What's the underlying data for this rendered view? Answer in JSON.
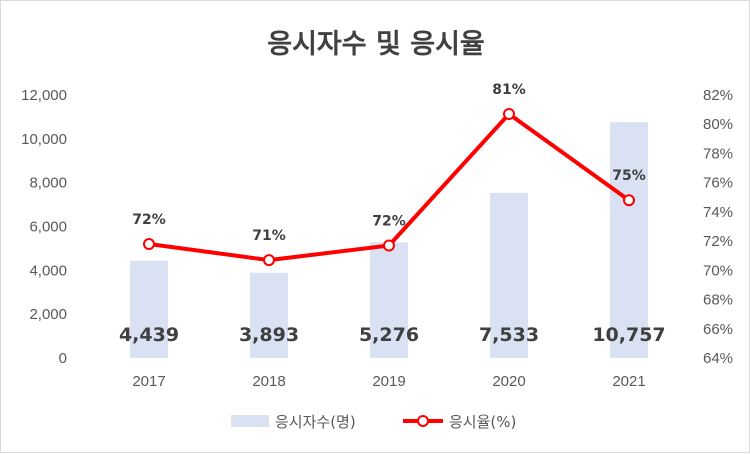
{
  "chart_data": {
    "type": "bar",
    "title": "응시자수 및 응시율",
    "categories": [
      "2017",
      "2018",
      "2019",
      "2020",
      "2021"
    ],
    "series": [
      {
        "name": "응시자수(명)",
        "type": "bar",
        "axis": "left",
        "values": [
          4439,
          3893,
          5276,
          7533,
          10757
        ],
        "labels": [
          "4,439",
          "3,893",
          "5,276",
          "7,533",
          "10,757"
        ],
        "color": "#d9e1f2"
      },
      {
        "name": "응시율(%)",
        "type": "line",
        "axis": "right",
        "values": [
          71.8,
          70.7,
          71.7,
          80.7,
          74.8
        ],
        "labels": [
          "72%",
          "71%",
          "72%",
          "81%",
          "75%"
        ],
        "color": "#ff0000"
      }
    ],
    "y_left": {
      "min": 0,
      "max": 12000,
      "ticks": [
        0,
        2000,
        4000,
        6000,
        8000,
        10000,
        12000
      ],
      "tick_labels": [
        "0",
        "2,000",
        "4,000",
        "6,000",
        "8,000",
        "10,000",
        "12,000"
      ]
    },
    "y_right": {
      "min": 64,
      "max": 82,
      "ticks": [
        64,
        66,
        68,
        70,
        72,
        74,
        76,
        78,
        80,
        82
      ],
      "tick_labels": [
        "64%",
        "66%",
        "68%",
        "70%",
        "72%",
        "74%",
        "76%",
        "78%",
        "80%",
        "82%"
      ]
    },
    "grid": false,
    "legend": "bottom"
  }
}
